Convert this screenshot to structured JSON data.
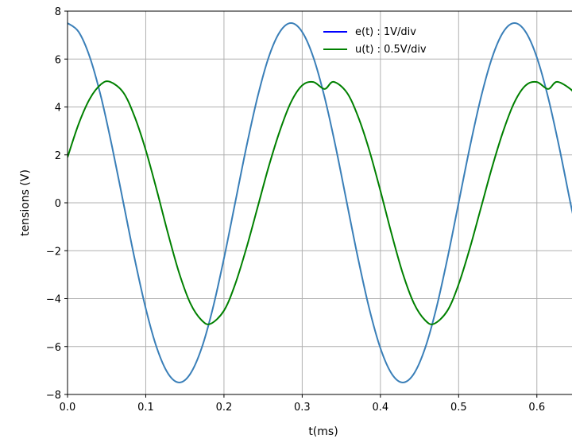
{
  "chart_data": {
    "type": "line",
    "title": "",
    "xlabel": "t(ms)",
    "ylabel": "tensions (V)",
    "xlim": [
      0.0,
      0.65
    ],
    "ylim": [
      -8,
      8
    ],
    "x_ticks": [
      0.0,
      0.1,
      0.2,
      0.3,
      0.4,
      0.5,
      0.6
    ],
    "x_tick_labels": [
      "0.0",
      "0.1",
      "0.2",
      "0.3",
      "0.4",
      "0.5",
      "0.6"
    ],
    "y_ticks": [
      -8,
      -6,
      -4,
      -2,
      0,
      2,
      4,
      6,
      8
    ],
    "y_tick_labels": [
      "−8",
      "−6",
      "−4",
      "−2",
      "0",
      "2",
      "4",
      "6",
      "8"
    ],
    "grid": true,
    "legend_position": "top-right",
    "series": [
      {
        "name": "e(t) : 1V/div",
        "line_color": "#3a7fb8",
        "legend_color": "#0000ff",
        "x": [
          0.0,
          0.0143,
          0.0286,
          0.0429,
          0.0571,
          0.0714,
          0.0857,
          0.1,
          0.1143,
          0.1286,
          0.1429,
          0.1571,
          0.1714,
          0.1857,
          0.2,
          0.2143,
          0.2286,
          0.2429,
          0.2571,
          0.2714,
          0.2857,
          0.3,
          0.3143,
          0.3286,
          0.3429,
          0.3571,
          0.3714,
          0.3857,
          0.4,
          0.4143,
          0.4286,
          0.4429,
          0.4571,
          0.4714,
          0.4857,
          0.5,
          0.5143,
          0.5286,
          0.5429,
          0.5571,
          0.5714,
          0.5857,
          0.6,
          0.6143,
          0.6286,
          0.6429,
          0.65
        ],
        "y": [
          7.5,
          7.13,
          6.07,
          4.41,
          2.32,
          0.0,
          -2.32,
          -4.41,
          -6.07,
          -7.13,
          -7.5,
          -7.13,
          -6.07,
          -4.41,
          -2.32,
          0.0,
          2.32,
          4.41,
          6.07,
          7.13,
          7.5,
          7.13,
          6.07,
          4.41,
          2.32,
          0.0,
          -2.32,
          -4.41,
          -6.07,
          -7.13,
          -7.5,
          -7.13,
          -6.07,
          -4.41,
          -2.32,
          0.0,
          2.32,
          4.41,
          6.07,
          7.13,
          7.5,
          7.13,
          6.07,
          4.41,
          2.32,
          0.0,
          -1.05
        ]
      },
      {
        "name": "u(t) : 0.5V/div",
        "line_color": "#008000",
        "legend_color": "#008000",
        "x": [
          0.0,
          0.0143,
          0.0286,
          0.0429,
          0.0543,
          0.0714,
          0.0857,
          0.1,
          0.1143,
          0.1286,
          0.1429,
          0.1571,
          0.1714,
          0.1829,
          0.2,
          0.2143,
          0.2286,
          0.2429,
          0.2571,
          0.2714,
          0.2857,
          0.3,
          0.3143,
          0.3286,
          0.34,
          0.3571,
          0.3714,
          0.3857,
          0.4,
          0.4143,
          0.4286,
          0.4429,
          0.4571,
          0.4686,
          0.4857,
          0.5,
          0.5143,
          0.5286,
          0.5429,
          0.5571,
          0.5714,
          0.5857,
          0.6,
          0.6143,
          0.6257,
          0.6429,
          0.65
        ],
        "y": [
          1.9,
          3.3,
          4.35,
          4.95,
          5.05,
          4.6,
          3.6,
          2.2,
          0.5,
          -1.3,
          -2.95,
          -4.2,
          -4.9,
          -5.05,
          -4.5,
          -3.4,
          -1.9,
          -0.2,
          1.5,
          3.0,
          4.2,
          4.9,
          5.04,
          4.75,
          5.05,
          4.6,
          3.6,
          2.2,
          0.5,
          -1.3,
          -2.95,
          -4.2,
          -4.9,
          -5.05,
          -4.5,
          -3.4,
          -1.9,
          -0.2,
          1.5,
          3.0,
          4.2,
          4.9,
          5.04,
          4.75,
          5.05,
          4.75,
          4.45
        ]
      }
    ]
  }
}
